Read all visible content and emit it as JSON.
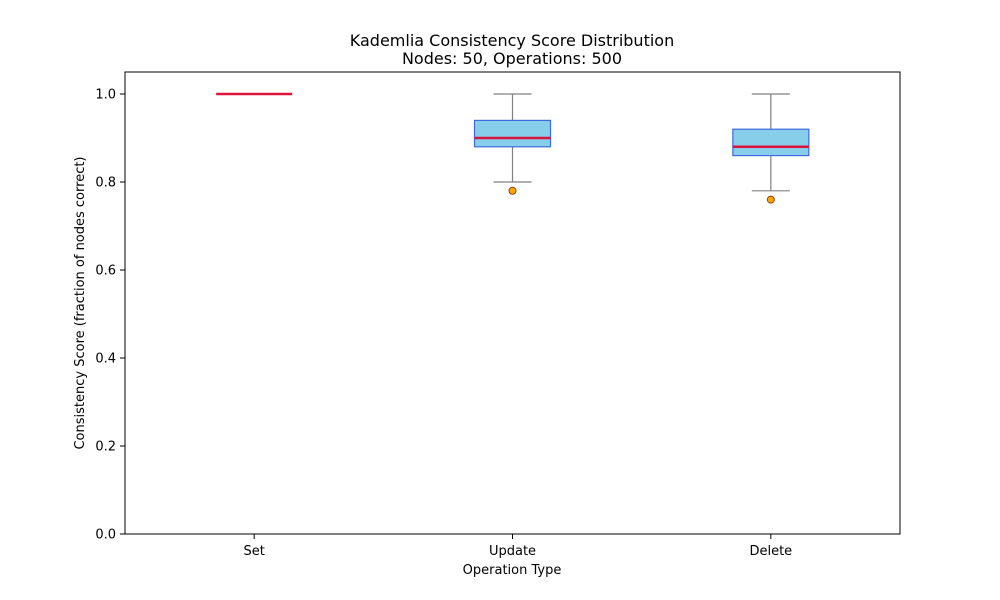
{
  "chart_data": {
    "type": "box",
    "title": "Kademlia Consistency Score Distribution",
    "subtitle": "Nodes: 50, Operations: 500",
    "xlabel": "Operation Type",
    "ylabel": "Consistency Score (fraction of nodes correct)",
    "ylim": [
      0,
      1.05
    ],
    "yticks": [
      0.0,
      0.2,
      0.4,
      0.6,
      0.8,
      1.0
    ],
    "ytick_labels": [
      "0.0",
      "0.2",
      "0.4",
      "0.6",
      "0.8",
      "1.0"
    ],
    "grid": false,
    "categories": [
      "Set",
      "Update",
      "Delete"
    ],
    "boxes": [
      {
        "category": "Set",
        "whisker_low": 1.0,
        "q1": 1.0,
        "median": 1.0,
        "q3": 1.0,
        "whisker_high": 1.0,
        "outliers": []
      },
      {
        "category": "Update",
        "whisker_low": 0.8,
        "q1": 0.88,
        "median": 0.9,
        "q3": 0.94,
        "whisker_high": 1.0,
        "outliers": [
          0.78
        ]
      },
      {
        "category": "Delete",
        "whisker_low": 0.78,
        "q1": 0.86,
        "median": 0.88,
        "q3": 0.92,
        "whisker_high": 1.0,
        "outliers": [
          0.76
        ]
      }
    ],
    "colors": {
      "box_fill": "#87ceeb",
      "box_edge": "#4169e1",
      "median": "#dc143c",
      "whisker": "#808080",
      "outlier_fill": "#ffa500",
      "outlier_edge": "#8b4513",
      "axis": "#000000"
    }
  }
}
